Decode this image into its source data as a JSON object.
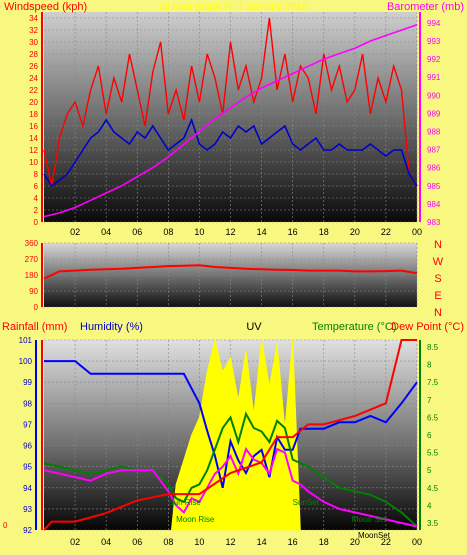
{
  "chart_data": [
    {
      "type": "line",
      "title": "24 hour graph for 1 January 2016",
      "ylabel_left": "Windspeed (kph)",
      "ylabel_right": "Barometer (mb)",
      "x_ticks": [
        "02",
        "04",
        "06",
        "08",
        "10",
        "12",
        "14",
        "16",
        "18",
        "20",
        "22",
        "00"
      ],
      "y_left_ticks": [
        0,
        2,
        4,
        6,
        8,
        10,
        12,
        14,
        16,
        18,
        20,
        22,
        24,
        26,
        28,
        30,
        32,
        34
      ],
      "y_right_ticks": [
        983,
        984,
        985,
        986,
        987,
        988,
        989,
        990,
        991,
        992,
        993,
        994
      ],
      "ylim_left": [
        0,
        35
      ],
      "ylim_right": [
        983,
        994.6
      ],
      "grid": true,
      "series": [
        {
          "name": "Windspeed (kph)",
          "color": "#ff0000",
          "axis": "left",
          "x": [
            0,
            0.5,
            1,
            1.5,
            2,
            2.5,
            3,
            3.5,
            4,
            4.5,
            5,
            5.5,
            6,
            6.5,
            7,
            7.5,
            8,
            8.5,
            9,
            9.5,
            10,
            10.5,
            11,
            11.5,
            12,
            12.5,
            13,
            13.5,
            14,
            14.5,
            15,
            15.5,
            16,
            16.5,
            17,
            17.5,
            18,
            18.5,
            19,
            19.5,
            20,
            20.5,
            21,
            21.5,
            22,
            22.5,
            23,
            23.5,
            24
          ],
          "values": [
            12,
            6,
            14,
            18,
            20,
            16,
            22,
            26,
            18,
            24,
            20,
            28,
            22,
            16,
            25,
            30,
            18,
            22,
            17,
            26,
            20,
            28,
            24,
            18,
            30,
            22,
            26,
            20,
            24,
            34,
            22,
            28,
            20,
            26,
            24,
            18,
            28,
            22,
            26,
            20,
            22,
            28,
            18,
            24,
            20,
            26,
            22,
            8,
            6
          ]
        },
        {
          "name": "Wind gust baseline",
          "color": "#0000cc",
          "axis": "left",
          "x": [
            0,
            0.5,
            1,
            1.5,
            2,
            2.5,
            3,
            3.5,
            4,
            4.5,
            5,
            5.5,
            6,
            6.5,
            7,
            7.5,
            8,
            8.5,
            9,
            9.5,
            10,
            10.5,
            11,
            11.5,
            12,
            12.5,
            13,
            13.5,
            14,
            14.5,
            15,
            15.5,
            16,
            16.5,
            17,
            17.5,
            18,
            18.5,
            19,
            19.5,
            20,
            20.5,
            21,
            21.5,
            22,
            22.5,
            23,
            23.5,
            24
          ],
          "values": [
            8,
            6,
            7,
            8,
            10,
            12,
            14,
            15,
            17,
            15,
            14,
            13,
            15,
            14,
            16,
            14,
            12,
            13,
            14,
            17,
            13,
            12,
            13,
            15,
            14,
            16,
            15,
            16,
            13,
            14,
            15,
            16,
            13,
            12,
            13,
            14,
            12,
            12,
            13,
            12,
            12,
            12,
            13,
            12,
            11,
            12,
            12,
            8,
            6
          ]
        },
        {
          "name": "Barometer (mb)",
          "color": "#ff00ff",
          "axis": "right",
          "x": [
            0,
            1,
            2,
            3,
            4,
            5,
            6,
            7,
            8,
            9,
            10,
            11,
            12,
            13,
            14,
            15,
            16,
            17,
            18,
            19,
            20,
            21,
            22,
            23,
            24
          ],
          "values": [
            983.3,
            983.5,
            983.8,
            984.2,
            984.6,
            985.0,
            985.5,
            986.0,
            986.6,
            987.3,
            988.0,
            988.7,
            989.3,
            989.9,
            990.4,
            990.8,
            991.2,
            991.6,
            992.0,
            992.3,
            992.6,
            993.0,
            993.3,
            993.6,
            993.9
          ]
        }
      ]
    },
    {
      "type": "line",
      "title": "",
      "ylabel_right": "N W S E N",
      "x_ticks": [],
      "y_left_ticks": [
        0,
        90,
        180,
        270,
        360
      ],
      "ylim": [
        0,
        360
      ],
      "series": [
        {
          "name": "Wind direction",
          "color": "#ff0000",
          "x": [
            0,
            1,
            2,
            3,
            4,
            5,
            6,
            7,
            8,
            9,
            10,
            11,
            12,
            13,
            14,
            15,
            16,
            17,
            18,
            19,
            20,
            21,
            22,
            23,
            24
          ],
          "values": [
            160,
            200,
            205,
            210,
            212,
            215,
            220,
            225,
            230,
            232,
            235,
            225,
            220,
            215,
            212,
            210,
            208,
            205,
            205,
            205,
            200,
            200,
            202,
            205,
            190
          ]
        }
      ]
    },
    {
      "type": "line",
      "title": "UV",
      "ylabel_left": "Humidity (%)",
      "ylabel_left_2": "Rainfall (mm)",
      "ylabel_right": "Temperature (°C)",
      "ylabel_right_2": "Dew Point (°C)",
      "x_ticks": [
        "02",
        "04",
        "06",
        "08",
        "10",
        "12",
        "14",
        "16",
        "18",
        "20",
        "22",
        "00"
      ],
      "y_left_ticks": [
        92,
        93,
        94,
        95,
        96,
        97,
        98,
        99,
        100,
        101
      ],
      "y_left_ticks_rain": [
        0
      ],
      "y_right_ticks": [
        3.5,
        4,
        4.5,
        5,
        5.5,
        6,
        6.5,
        7,
        7.5,
        8,
        8.5
      ],
      "ylim_left": [
        92,
        101
      ],
      "ylim_right": [
        3.3,
        8.7
      ],
      "annotations": [
        "Sun Rise",
        "Moon Rise",
        "SunSet",
        "Moon Set",
        "MoonSet"
      ],
      "series": [
        {
          "name": "Humidity (%)",
          "color": "#0000ff",
          "axis": "left",
          "x": [
            0,
            1,
            2,
            3,
            3.5,
            4,
            5,
            6,
            7,
            8,
            8.5,
            9,
            10,
            10.5,
            11,
            11.5,
            12,
            12.5,
            13,
            13.5,
            14,
            14.5,
            15,
            15.5,
            16,
            16.5,
            17,
            18,
            19,
            20,
            21,
            22,
            23,
            24
          ],
          "values": [
            100,
            100,
            100,
            99.4,
            99.4,
            99.4,
            99.4,
            99.4,
            99.4,
            99.4,
            99.4,
            99.4,
            98,
            96.7,
            95.5,
            94,
            96.2,
            95.3,
            94.7,
            95.5,
            95.8,
            94.5,
            96.4,
            95.8,
            95.8,
            96.8,
            96.8,
            96.8,
            97.1,
            97.1,
            97.4,
            97.1,
            98,
            99
          ]
        },
        {
          "name": "Temperature (°C)",
          "color": "#008000",
          "axis": "right",
          "x": [
            0,
            1,
            2,
            3,
            4,
            5,
            6,
            7,
            8,
            8.5,
            9,
            9.5,
            10,
            10.5,
            11,
            11.5,
            12,
            12.5,
            13,
            13.5,
            14,
            14.5,
            15,
            15.5,
            16,
            16.5,
            17,
            18,
            19,
            20,
            21,
            22,
            23,
            24
          ],
          "values": [
            5.2,
            5.1,
            5.0,
            4.9,
            5.0,
            5.1,
            5.0,
            5.0,
            4.6,
            4.2,
            4.1,
            4.5,
            4.6,
            5.0,
            5.6,
            6.2,
            6.5,
            5.8,
            6.6,
            6.2,
            6.1,
            5.8,
            6.4,
            6.2,
            5.3,
            5.2,
            5.1,
            4.8,
            4.5,
            4.4,
            4.3,
            4.1,
            3.8,
            3.4
          ]
        },
        {
          "name": "Dew Point (°C)",
          "color": "#ff00ff",
          "axis": "right",
          "x": [
            0,
            1,
            2,
            3,
            4,
            5,
            6,
            7,
            8,
            8.5,
            9,
            9.5,
            10,
            10.5,
            11,
            11.5,
            12,
            12.5,
            13,
            13.5,
            14,
            14.5,
            15,
            15.5,
            16,
            16.5,
            17,
            18,
            19,
            20,
            21,
            22,
            23,
            24
          ],
          "values": [
            5.0,
            4.9,
            4.8,
            4.7,
            4.9,
            5.0,
            5.0,
            5.0,
            4.4,
            4.0,
            3.8,
            4.2,
            4.1,
            4.5,
            4.9,
            5.1,
            5.4,
            4.9,
            5.6,
            5.3,
            5.2,
            4.9,
            5.6,
            5.5,
            4.7,
            4.6,
            4.4,
            4.1,
            3.9,
            3.8,
            3.7,
            3.6,
            3.5,
            3.4
          ]
        },
        {
          "name": "Rainfall (mm)",
          "color": "#ff0000",
          "axis": "left",
          "x": [
            0,
            0.5,
            2,
            4,
            6,
            8,
            10,
            12,
            14,
            15,
            16,
            17,
            18,
            20,
            22,
            23,
            23.5,
            24
          ],
          "values": [
            92,
            92.4,
            92.4,
            92.8,
            93.4,
            93.7,
            93.7,
            94.7,
            95.2,
            96.4,
            96.4,
            97.0,
            97.0,
            97.4,
            98.0,
            101.0,
            101.0,
            101.0
          ]
        },
        {
          "name": "UV",
          "color": "#ffff00",
          "axis": "right",
          "x": [
            8.2,
            8.5,
            9,
            9.5,
            10,
            10.5,
            11,
            11.5,
            12,
            12.5,
            13,
            13.5,
            14,
            14.5,
            15,
            15.5,
            16,
            16.5
          ],
          "values": [
            3.3,
            4.6,
            5.3,
            6.0,
            6.5,
            7.8,
            8.7,
            7.8,
            8.2,
            7.0,
            8.4,
            6.6,
            8.7,
            7.4,
            8.6,
            6.2,
            8.7,
            3.3
          ]
        }
      ]
    }
  ]
}
